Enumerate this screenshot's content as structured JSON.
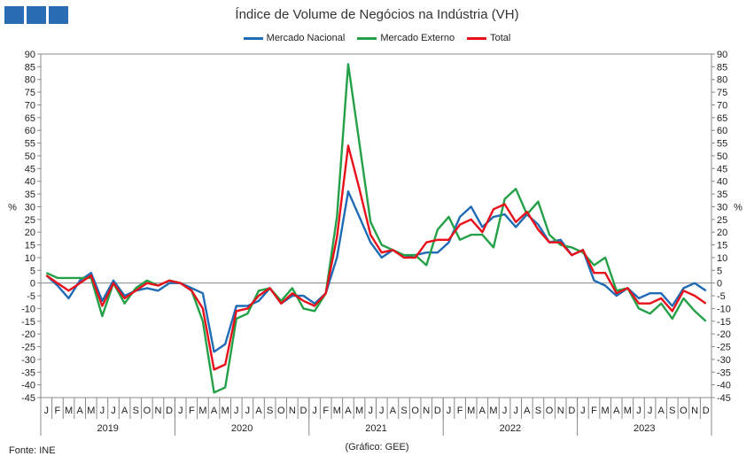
{
  "header": {
    "logo_color": "#2a6db4",
    "title": "Índice de Volume de Negócios na Indústria (VH)"
  },
  "footer": {
    "source": "Fonte: INE",
    "credit": "(Gráfico: GEE)"
  },
  "chart_data": {
    "type": "line",
    "title": "Índice de Volume de Negócios na Indústria (VH)",
    "ylabel_left": "%",
    "ylabel_right": "%",
    "ylim": [
      -45,
      90
    ],
    "ytick_step": 5,
    "grid": false,
    "legend_placement": "top-center",
    "month_labels": [
      "J",
      "F",
      "M",
      "A",
      "M",
      "J",
      "J",
      "A",
      "S",
      "O",
      "N",
      "D"
    ],
    "years": [
      "2019",
      "2020",
      "2021",
      "2022",
      "2023"
    ],
    "x": [
      "2019-01",
      "2019-02",
      "2019-03",
      "2019-04",
      "2019-05",
      "2019-06",
      "2019-07",
      "2019-08",
      "2019-09",
      "2019-10",
      "2019-11",
      "2019-12",
      "2020-01",
      "2020-02",
      "2020-03",
      "2020-04",
      "2020-05",
      "2020-06",
      "2020-07",
      "2020-08",
      "2020-09",
      "2020-10",
      "2020-11",
      "2020-12",
      "2021-01",
      "2021-02",
      "2021-03",
      "2021-04",
      "2021-05",
      "2021-06",
      "2021-07",
      "2021-08",
      "2021-09",
      "2021-10",
      "2021-11",
      "2021-12",
      "2022-01",
      "2022-02",
      "2022-03",
      "2022-04",
      "2022-05",
      "2022-06",
      "2022-07",
      "2022-08",
      "2022-09",
      "2022-10",
      "2022-11",
      "2022-12",
      "2023-01",
      "2023-02",
      "2023-03",
      "2023-04",
      "2023-05",
      "2023-06",
      "2023-07",
      "2023-08",
      "2023-09",
      "2023-10",
      "2023-11",
      "2023-12"
    ],
    "series": [
      {
        "name": "Mercado Nacional",
        "color": "#1f6bb5",
        "values": [
          3,
          -1,
          -6,
          1,
          4,
          -7,
          1,
          -5,
          -3,
          -2,
          -3,
          0,
          0,
          -2,
          -4,
          -27,
          -24,
          -9,
          -9,
          -7,
          -2,
          -8,
          -5,
          -5,
          -8,
          -4,
          10,
          36,
          26,
          16,
          10,
          13,
          10,
          11,
          12,
          12,
          16,
          26,
          30,
          22,
          26,
          27,
          22,
          27,
          23,
          16,
          17,
          11,
          13,
          1,
          -1,
          -5,
          -2,
          -6,
          -4,
          -4,
          -9,
          -2,
          0,
          -3
        ]
      },
      {
        "name": "Mercado Externo",
        "color": "#24a148",
        "values": [
          4,
          2,
          2,
          2,
          2,
          -13,
          0,
          -8,
          -2,
          1,
          -1,
          1,
          0,
          -3,
          -15,
          -43,
          -41,
          -14,
          -12,
          -3,
          -2,
          -7,
          -2,
          -10,
          -11,
          -4,
          26,
          86,
          55,
          24,
          15,
          13,
          11,
          11,
          7,
          21,
          26,
          17,
          19,
          19,
          14,
          33,
          37,
          27,
          32,
          19,
          15,
          14,
          12,
          7,
          10,
          -3,
          -2,
          -10,
          -12,
          -8,
          -14,
          -6,
          -11,
          -15
        ]
      },
      {
        "name": "Total",
        "color": "#e8101a",
        "values": [
          3,
          0,
          -3,
          0,
          3,
          -9,
          0,
          -6,
          -3,
          0,
          -1,
          1,
          0,
          -3,
          -10,
          -34,
          -32,
          -11,
          -10,
          -5,
          -2,
          -8,
          -4,
          -7,
          -9,
          -4,
          18,
          54,
          37,
          19,
          12,
          13,
          10,
          10,
          16,
          17,
          17,
          23,
          25,
          20,
          29,
          31,
          24,
          28,
          21,
          16,
          16,
          11,
          13,
          4,
          4,
          -4,
          -2,
          -8,
          -8,
          -6,
          -11,
          -3,
          -5,
          -8
        ]
      }
    ]
  }
}
